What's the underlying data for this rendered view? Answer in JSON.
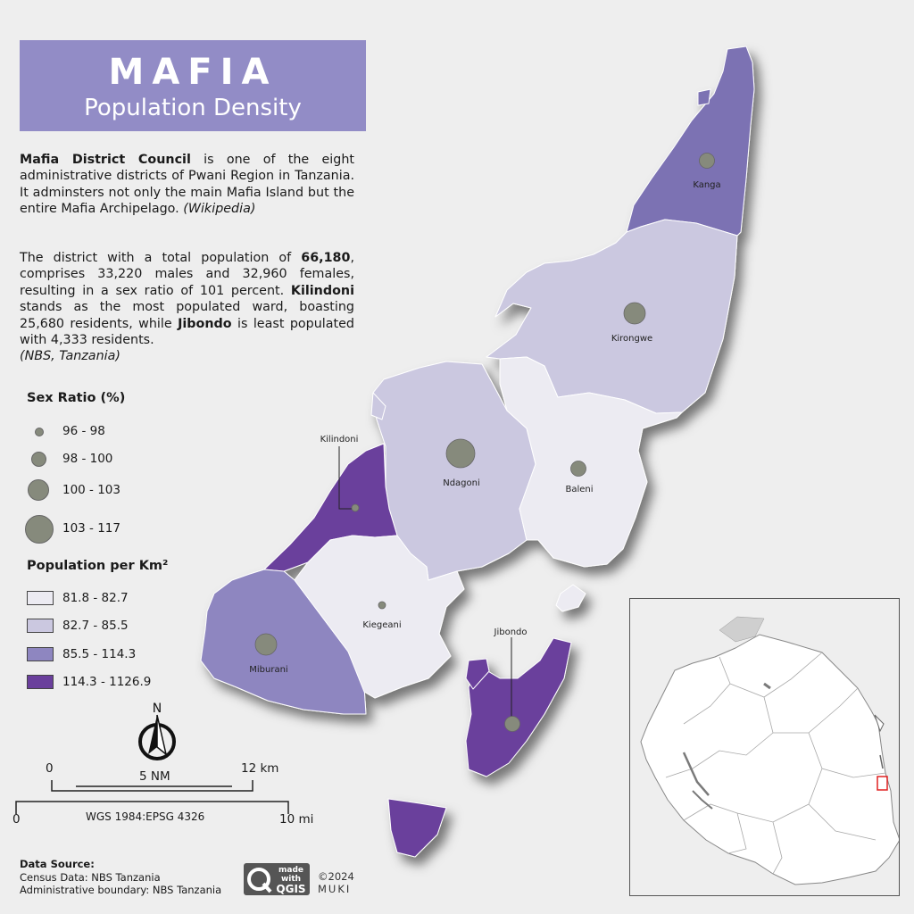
{
  "title": {
    "main": "MAFIA",
    "subtitle": "Population Density"
  },
  "description": {
    "p1_bold": "Mafia District Council",
    "p1_text": " is one of the eight administrative districts of Pwani Region in Tanzania. It adminsters not only the main Mafia Island but the entire Mafia Archipelago. ",
    "p1_source": "(Wikipedia)",
    "p2_a": "The district with a total population of ",
    "p2_total": "66,180",
    "p2_b": ", comprises 33,220 males and 32,960 females, resulting in a sex ratio of 101 percent. ",
    "p2_kilindoni": "Kilindoni",
    "p2_c": " stands as the most populated ward, boasting 25,680 residents, while ",
    "p2_jibondo": "Jibondo",
    "p2_d": " is least populated with 4,333 residents.",
    "p2_source": "(NBS, Tanzania)"
  },
  "legend_sex_ratio": {
    "title": "Sex Ratio (%)",
    "classes": [
      "96 - 98",
      "98 - 100",
      "100 - 103",
      "103 - 117"
    ]
  },
  "legend_density": {
    "title": "Population per Km²",
    "classes": [
      {
        "label": "81.8 - 82.7",
        "color": "#ecebf2"
      },
      {
        "label": "82.7 - 85.5",
        "color": "#cbc8e0"
      },
      {
        "label": "85.5 - 114.3",
        "color": "#8e86c0"
      },
      {
        "label": "114.3 - 1126.9",
        "color": "#6a3f9c"
      }
    ]
  },
  "wards": [
    {
      "name": "Kanga",
      "density_class": 3,
      "sex_ratio_class": 2,
      "color": "#7b72b3"
    },
    {
      "name": "Kirongwe",
      "density_class": 2,
      "sex_ratio_class": 3,
      "color": "#cbc8e0"
    },
    {
      "name": "Kilindoni",
      "density_class": 4,
      "sex_ratio_class": 1,
      "color": "#6a3f9c"
    },
    {
      "name": "Ndagoni",
      "density_class": 2,
      "sex_ratio_class": 4,
      "color": "#cbc8e0"
    },
    {
      "name": "Baleni",
      "density_class": 1,
      "sex_ratio_class": 2,
      "color": "#ecebf2"
    },
    {
      "name": "Kiegeani",
      "density_class": 1,
      "sex_ratio_class": 1,
      "color": "#ecebf2"
    },
    {
      "name": "Miburani",
      "density_class": 3,
      "sex_ratio_class": 3,
      "color": "#8e86c0"
    },
    {
      "name": "Jibondo",
      "density_class": 4,
      "sex_ratio_class": 2,
      "color": "#6a3f9c"
    }
  ],
  "north_arrow_label": "N",
  "scale_bar": {
    "km_start": "0",
    "km_end": "12 km",
    "nm_label": "5 NM",
    "mi_start": "0",
    "mi_end": "10 mi",
    "crs": "WGS 1984:EPSG 4326"
  },
  "data_source": {
    "title": "Data Source:",
    "census": "Census Data: NBS Tanzania",
    "boundary": "Administrative boundary: NBS Tanzania"
  },
  "badge": {
    "line1": "made",
    "line2": "with",
    "line3": "QGIS"
  },
  "credit": {
    "year": "©2024",
    "author": "MUKI"
  },
  "colors": {
    "title_bg": "#928cc6",
    "dot": "#868a7c",
    "inset_highlight": "#e02020"
  }
}
